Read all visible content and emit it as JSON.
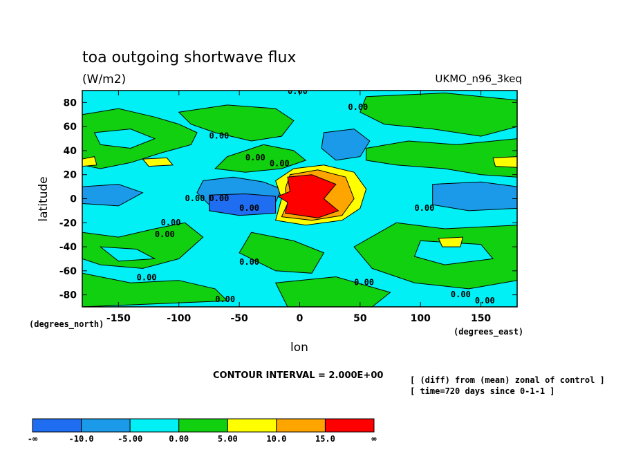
{
  "chart_data": {
    "type": "heatmap",
    "title": "toa outgoing shortwave flux",
    "units": "(W/m2)",
    "model": "UKMO_n96_3keq",
    "xlabel": "lon",
    "ylabel": "latitude",
    "x_unit_label": "(degrees_east)",
    "y_unit_label": "(degrees_north)",
    "xlim": [
      -180,
      180
    ],
    "ylim": [
      -90,
      90
    ],
    "x_ticks": [
      -150,
      -100,
      -50,
      0,
      50,
      100,
      150
    ],
    "y_ticks": [
      -80,
      -60,
      -40,
      -20,
      0,
      20,
      40,
      60,
      80
    ],
    "contour_interval_text": "CONTOUR INTERVAL = 2.000E+00",
    "notes": [
      "[ (diff) from (mean) zonal of control ]",
      "[ time=720 days since 0-1-1 ]"
    ],
    "contour_labels": [
      "0.00"
    ],
    "colorbar": {
      "labels": [
        "-∞",
        "-10.0",
        "-5.00",
        "0.00",
        "5.00",
        "10.0",
        "15.0",
        "∞"
      ],
      "colors": [
        "#1f6df0",
        "#1a9ae8",
        "#00f0f5",
        "#10d010",
        "#ffff00",
        "#ffa500",
        "#ff0000"
      ]
    },
    "features": [
      {
        "name": "equatorial positive anomaly",
        "lon": [
          -15,
          40
        ],
        "lat": [
          -20,
          25
        ],
        "max_class": "> 15"
      },
      {
        "name": "equatorial negative anomaly",
        "lon": [
          -80,
          -15
        ],
        "lat": [
          -10,
          10
        ],
        "min_class": "< -10"
      },
      {
        "name": "north pacific negative",
        "lon": [
          20,
          55
        ],
        "lat": [
          30,
          55
        ],
        "min_class": "-10 to -5"
      },
      {
        "name": "mid-latitude bands",
        "lat": [
          30,
          70
        ],
        "class": "0 to 5"
      }
    ]
  }
}
